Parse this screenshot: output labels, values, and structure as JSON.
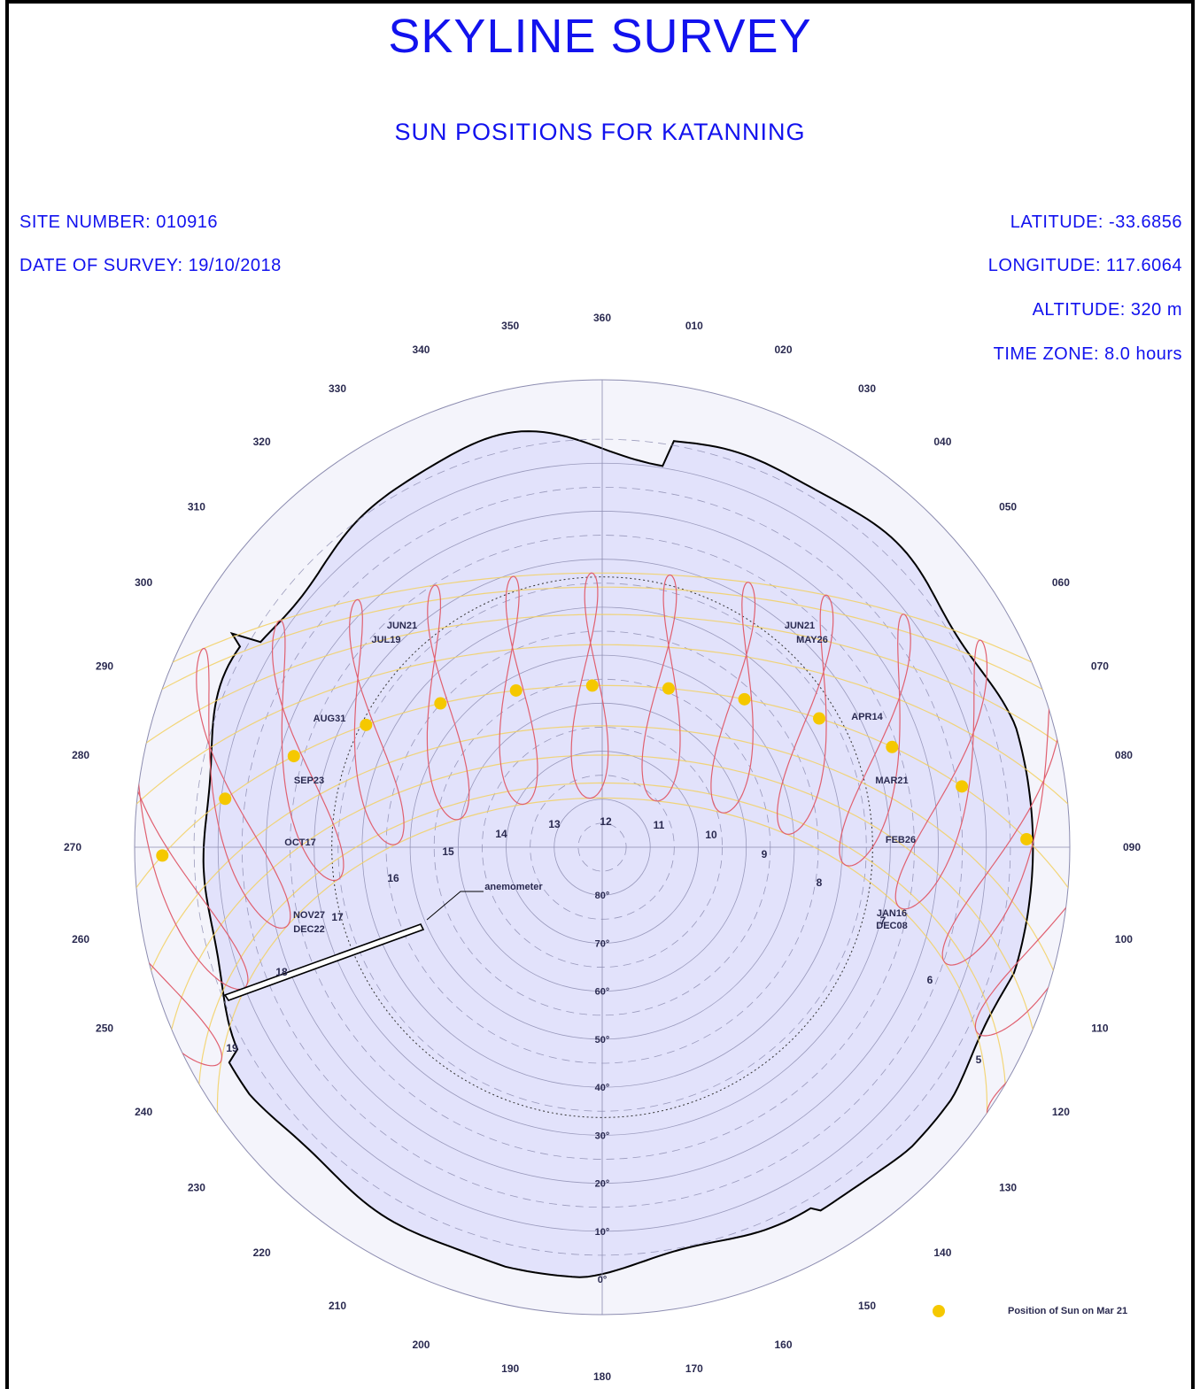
{
  "header": {
    "title": "SKYLINE SURVEY",
    "subtitle": "SUN POSITIONS FOR KATANNING"
  },
  "site": {
    "site_number": "SITE NUMBER: 010916",
    "date_of_survey": "DATE OF SURVEY: 19/10/2018",
    "latitude": "LATITUDE: -33.6856",
    "longitude": "LONGITUDE: 117.6064",
    "altitude": "ALTITUDE: 320 m",
    "time_zone": "TIME ZONE: 8.0 hours"
  },
  "azimuth_labels": [
    "360",
    "010",
    "020",
    "030",
    "040",
    "050",
    "060",
    "070",
    "080",
    "090",
    "100",
    "110",
    "120",
    "130",
    "140",
    "150",
    "160",
    "170",
    "180",
    "190",
    "200",
    "210",
    "220",
    "230",
    "240",
    "250",
    "260",
    "270",
    "280",
    "290",
    "300",
    "310",
    "320",
    "330",
    "340",
    "350"
  ],
  "elevation_labels": [
    "80°",
    "70°",
    "60°",
    "50°",
    "40°",
    "30°",
    "20°",
    "10°",
    "0°"
  ],
  "hour_labels": [
    "5",
    "6",
    "7",
    "8",
    "9",
    "10",
    "11",
    "12",
    "13",
    "14",
    "15",
    "16",
    "17",
    "18",
    "19"
  ],
  "date_labels": [
    "JUN21",
    "JUL19",
    "AUG31",
    "SEP23",
    "OCT17",
    "NOV27",
    "DEC22",
    "JUN21",
    "MAY26",
    "APR14",
    "MAR21",
    "FEB26",
    "JAN16",
    "DEC08"
  ],
  "annotation": "anemometer",
  "legend": {
    "label": "Position of Sun on Mar 21"
  },
  "colors": {
    "text": "#1212ee",
    "sky_fill": "#e2e2fb",
    "analemma": "#e06070",
    "date_arc": "#f2d060",
    "sun_dot": "#f5c800",
    "grid": "#8c8cb0"
  }
}
